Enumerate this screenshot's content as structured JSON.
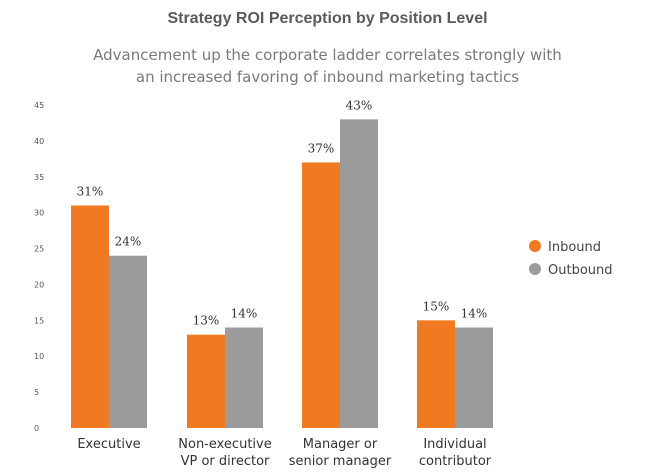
{
  "chart_data": {
    "type": "bar",
    "title": "Strategy ROI Perception by Position Level",
    "subtitle_lines": [
      "Advancement up the corporate ladder correlates strongly with",
      "an increased favoring of inbound marketing tactics"
    ],
    "categories": [
      [
        "Executive"
      ],
      [
        "Non-executive",
        "VP or director"
      ],
      [
        "Manager or",
        "senior manager"
      ],
      [
        "Individual",
        "contributor"
      ]
    ],
    "series": [
      {
        "name": "Inbound",
        "color": "#f07a22",
        "values": [
          31,
          13,
          37,
          15
        ],
        "labels": [
          "31%",
          "13%",
          "37%",
          "15%"
        ]
      },
      {
        "name": "Outbound",
        "color": "#9b9b9b",
        "values": [
          24,
          14,
          43,
          14
        ],
        "labels": [
          "24%",
          "14%",
          "43%",
          "14%"
        ]
      }
    ],
    "ylim": [
      0,
      45
    ],
    "yticks": [
      0,
      5,
      10,
      15,
      20,
      25,
      30,
      35,
      40,
      45
    ],
    "grid": false,
    "legend_position": "right",
    "xlabel": "",
    "ylabel": ""
  }
}
